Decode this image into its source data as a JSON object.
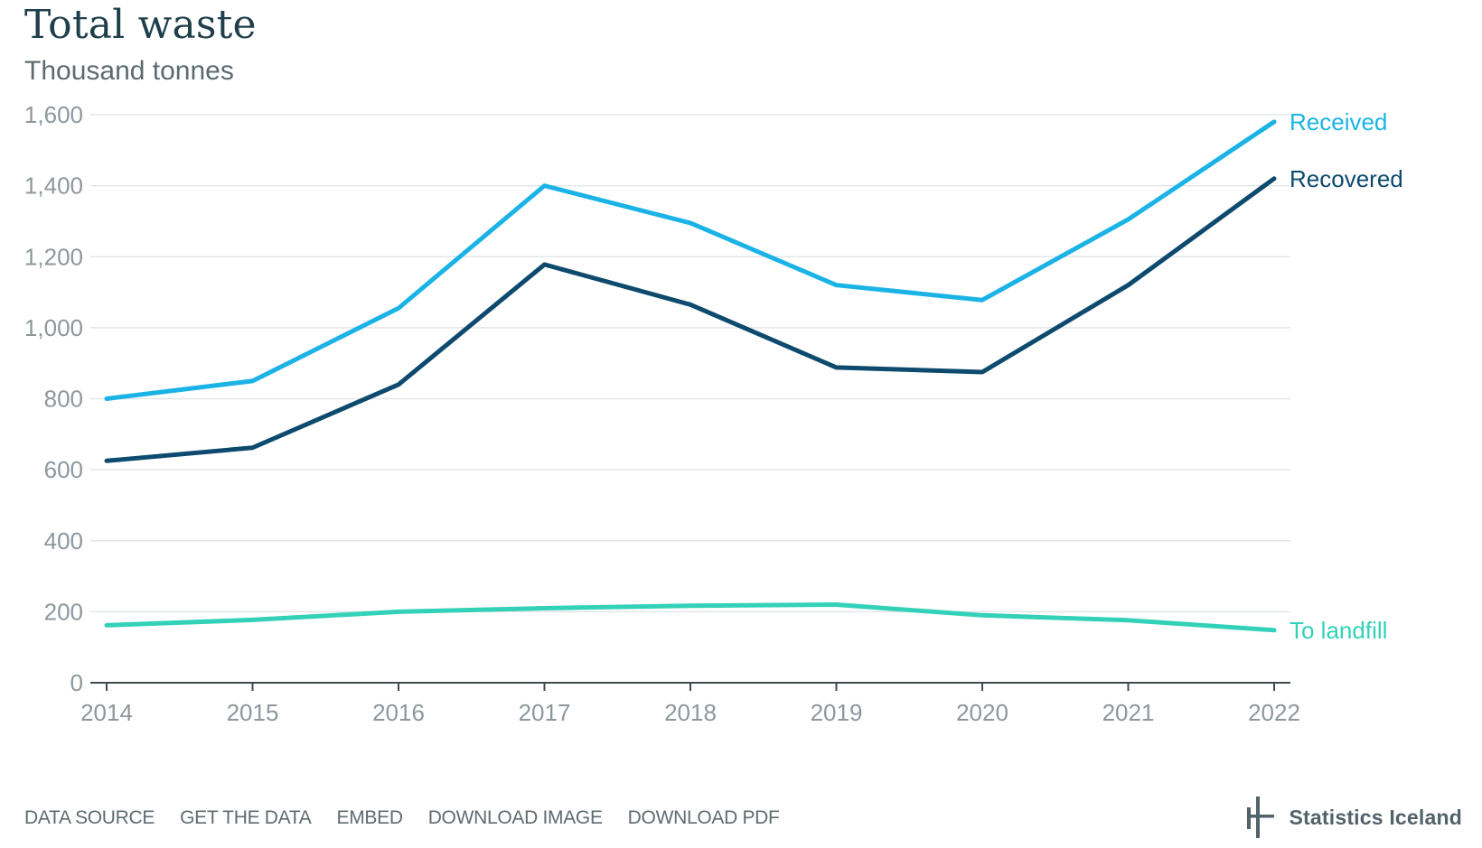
{
  "header": {
    "title": "Total waste",
    "subtitle": "Thousand tonnes"
  },
  "chart_data": {
    "type": "line",
    "title": "Total waste",
    "subtitle": "Thousand tonnes",
    "xlabel": "",
    "ylabel": "",
    "x": [
      "2014",
      "2015",
      "2016",
      "2017",
      "2018",
      "2019",
      "2020",
      "2021",
      "2022"
    ],
    "ylim": [
      0,
      1600
    ],
    "yticks": [
      0,
      200,
      400,
      600,
      800,
      1000,
      1200,
      1400,
      1600
    ],
    "ytick_labels": [
      "0",
      "200",
      "400",
      "600",
      "800",
      "1,000",
      "1,200",
      "1,400",
      "1,600"
    ],
    "grid": true,
    "legend": "direct labels at line ends (right)",
    "series": [
      {
        "name": "Received",
        "color": "#1bb3e6",
        "values": [
          800,
          850,
          1055,
          1400,
          1295,
          1120,
          1078,
          1305,
          1580
        ]
      },
      {
        "name": "Recovered",
        "color": "#0d4a6e",
        "values": [
          625,
          662,
          840,
          1178,
          1065,
          888,
          875,
          1120,
          1420
        ]
      },
      {
        "name": "To landfill",
        "color": "#33d1b8",
        "values": [
          162,
          177,
          200,
          210,
          217,
          220,
          190,
          176,
          148
        ]
      }
    ]
  },
  "footer": {
    "links": [
      "DATA SOURCE",
      "GET THE DATA",
      "EMBED",
      "DOWNLOAD IMAGE",
      "DOWNLOAD PDF"
    ],
    "brand": "Statistics Iceland",
    "brand_icon": "statistics-iceland-logo-icon"
  }
}
